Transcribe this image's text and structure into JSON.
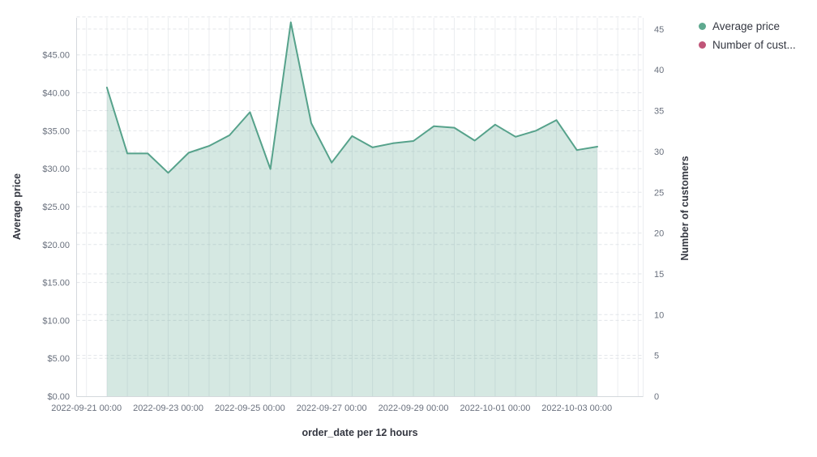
{
  "legend": {
    "position": "top-right",
    "items": [
      {
        "label": "Average price",
        "color": "#5ea98f"
      },
      {
        "label": "Number of cust...",
        "color": "#c05578"
      }
    ]
  },
  "axes": {
    "x_title": "order_date per 12 hours",
    "y_left_title": "Average price",
    "y_right_title": "Number of customers",
    "y_left_tick_labels": [
      "$0.00",
      "$5.00",
      "$10.00",
      "$15.00",
      "$20.00",
      "$25.00",
      "$30.00",
      "$35.00",
      "$40.00",
      "$45.00"
    ],
    "y_right_tick_labels": [
      "0",
      "5",
      "10",
      "15",
      "20",
      "25",
      "30",
      "35",
      "40",
      "45"
    ],
    "x_tick_labels": [
      "2022-09-21 00:00",
      "2022-09-23 00:00",
      "2022-09-25 00:00",
      "2022-09-27 00:00",
      "2022-09-29 00:00",
      "2022-10-01 00:00",
      "2022-10-03 00:00"
    ]
  },
  "colors": {
    "line": "#56a28b",
    "area_fill": "rgba(86,164,139,0.25)",
    "v_grid": "#ebedf0",
    "h_grid": "#e2e5e9",
    "axis_line": "#d4d8dd",
    "tick_text": "#69707d",
    "title_text": "#343741"
  },
  "chart_data": {
    "type": "area",
    "title": "",
    "xlabel": "order_date per 12 hours",
    "ylabel_left": "Average price",
    "ylabel_right": "Number of customers",
    "x_interval": "12 hours",
    "ylim_left": [
      0,
      50
    ],
    "ylim_right": [
      0,
      46.5
    ],
    "y_left_ticks": [
      0,
      5,
      10,
      15,
      20,
      25,
      30,
      35,
      40,
      45,
      50
    ],
    "y_right_ticks": [
      0,
      5,
      10,
      15,
      20,
      25,
      30,
      35,
      40,
      45
    ],
    "grid": true,
    "legend_position": "top-right",
    "series": [
      {
        "name": "Average price",
        "axis": "left",
        "color": "#56a28b",
        "visible": true,
        "x": [
          "2022-09-21 12:00",
          "2022-09-22 00:00",
          "2022-09-22 12:00",
          "2022-09-23 00:00",
          "2022-09-23 12:00",
          "2022-09-24 00:00",
          "2022-09-24 12:00",
          "2022-09-25 00:00",
          "2022-09-25 12:00",
          "2022-09-26 00:00",
          "2022-09-26 12:00",
          "2022-09-27 00:00",
          "2022-09-27 12:00",
          "2022-09-28 00:00",
          "2022-09-28 12:00",
          "2022-09-29 00:00",
          "2022-09-29 12:00",
          "2022-09-30 00:00",
          "2022-09-30 12:00",
          "2022-10-01 00:00",
          "2022-10-01 12:00",
          "2022-10-02 00:00",
          "2022-10-02 12:00",
          "2022-10-03 00:00",
          "2022-10-03 12:00"
        ],
        "values": [
          40.7,
          32.0,
          32.0,
          29.45,
          32.1,
          33.0,
          34.4,
          37.45,
          29.95,
          49.3,
          36.0,
          30.8,
          34.3,
          32.8,
          33.35,
          33.65,
          35.6,
          35.4,
          33.7,
          35.8,
          34.2,
          35.0,
          36.4,
          32.45,
          32.9
        ]
      },
      {
        "name": "Number of customers",
        "axis": "right",
        "color": "#c05578",
        "visible": false,
        "values": []
      }
    ]
  }
}
